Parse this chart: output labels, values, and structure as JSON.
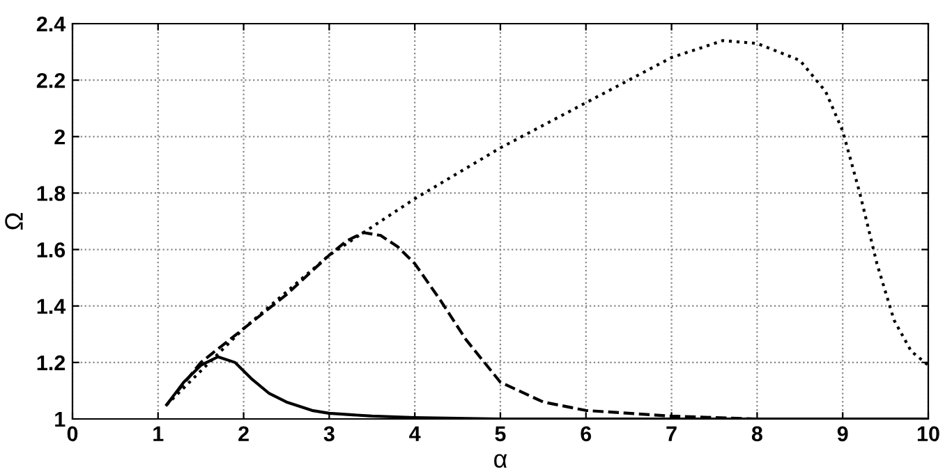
{
  "chart_data": {
    "type": "line",
    "xlabel": "α",
    "ylabel": "Ω",
    "xlim": [
      0,
      10
    ],
    "ylim": [
      1,
      2.4
    ],
    "xticks": [
      0,
      1,
      2,
      3,
      4,
      5,
      6,
      7,
      8,
      9,
      10
    ],
    "yticks": [
      1,
      1.2,
      1.4,
      1.6,
      1.8,
      2,
      2.2,
      2.4
    ],
    "grid": true,
    "legend": false,
    "marker": "none",
    "series": [
      {
        "color": "#000000",
        "line_style": "solid",
        "x": [
          1.1,
          1.3,
          1.5,
          1.7,
          1.9,
          2.1,
          2.3,
          2.5,
          2.8,
          3,
          3.5,
          4,
          5,
          6,
          8,
          10
        ],
        "values": [
          1.05,
          1.13,
          1.19,
          1.22,
          1.2,
          1.14,
          1.09,
          1.06,
          1.03,
          1.02,
          1.01,
          1.005,
          1.0,
          1.0,
          1.0,
          1.0
        ]
      },
      {
        "color": "#000000",
        "line_style": "dashed",
        "x": [
          1.1,
          1.5,
          2,
          2.5,
          3,
          3.2,
          3.4,
          3.6,
          3.8,
          4,
          4.3,
          4.6,
          5,
          5.5,
          6,
          7,
          8,
          10
        ],
        "values": [
          1.05,
          1.2,
          1.32,
          1.44,
          1.58,
          1.63,
          1.66,
          1.65,
          1.61,
          1.55,
          1.42,
          1.28,
          1.13,
          1.06,
          1.03,
          1.01,
          1.0,
          1.0
        ]
      },
      {
        "color": "#000000",
        "line_style": "dotted",
        "x": [
          1.1,
          2,
          3,
          4,
          5,
          6,
          7,
          7.6,
          8,
          8.5,
          8.8,
          9,
          9.2,
          9.4,
          9.6,
          9.8,
          10
        ],
        "values": [
          1.05,
          1.32,
          1.58,
          1.78,
          1.96,
          2.12,
          2.28,
          2.34,
          2.33,
          2.27,
          2.16,
          2.02,
          1.8,
          1.55,
          1.35,
          1.24,
          1.19
        ]
      }
    ]
  }
}
